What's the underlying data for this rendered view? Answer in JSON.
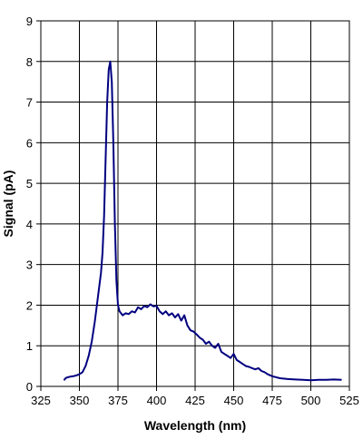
{
  "chart_data": {
    "type": "line",
    "title": "",
    "xlabel": "Wavelength (nm)",
    "ylabel": "Signal (pA)",
    "xlim": [
      325,
      525
    ],
    "ylim": [
      0,
      9
    ],
    "xticks": [
      325,
      350,
      375,
      400,
      425,
      450,
      475,
      500,
      525
    ],
    "yticks": [
      0,
      1,
      2,
      3,
      4,
      5,
      6,
      7,
      8,
      9
    ],
    "grid": true,
    "legend": "none",
    "line_color": "#000080",
    "series": [
      {
        "x": [
          340,
          341,
          342,
          344,
          346,
          348,
          350,
          352,
          354,
          356,
          358,
          360,
          362,
          364,
          365,
          366,
          367,
          368,
          369,
          370,
          371,
          372,
          373,
          374,
          375,
          376,
          377,
          378,
          380,
          382,
          384,
          386,
          388,
          390,
          392,
          394,
          396,
          398,
          400,
          402,
          404,
          406,
          408,
          410,
          412,
          414,
          416,
          418,
          420,
          422,
          424,
          426,
          428,
          430,
          432,
          434,
          436,
          438,
          440,
          442,
          444,
          446,
          448,
          450,
          452,
          454,
          456,
          458,
          460,
          462,
          464,
          466,
          468,
          470,
          472,
          475,
          480,
          485,
          490,
          495,
          500,
          505,
          510,
          515,
          520
        ],
        "y": [
          0.15,
          0.2,
          0.22,
          0.24,
          0.25,
          0.27,
          0.3,
          0.35,
          0.5,
          0.75,
          1.1,
          1.6,
          2.2,
          2.8,
          3.3,
          4.2,
          5.6,
          7.0,
          7.8,
          8.0,
          7.5,
          6.0,
          4.0,
          2.6,
          2.0,
          1.85,
          1.8,
          1.75,
          1.8,
          1.78,
          1.85,
          1.82,
          1.95,
          1.9,
          1.98,
          1.95,
          2.02,
          1.97,
          1.98,
          1.85,
          1.78,
          1.85,
          1.75,
          1.8,
          1.7,
          1.78,
          1.62,
          1.75,
          1.5,
          1.38,
          1.35,
          1.28,
          1.2,
          1.15,
          1.05,
          1.1,
          1.0,
          0.95,
          1.05,
          0.85,
          0.8,
          0.75,
          0.7,
          0.8,
          0.65,
          0.6,
          0.55,
          0.5,
          0.48,
          0.45,
          0.42,
          0.45,
          0.38,
          0.35,
          0.3,
          0.25,
          0.2,
          0.18,
          0.17,
          0.16,
          0.15,
          0.16,
          0.16,
          0.17,
          0.16
        ]
      }
    ]
  }
}
